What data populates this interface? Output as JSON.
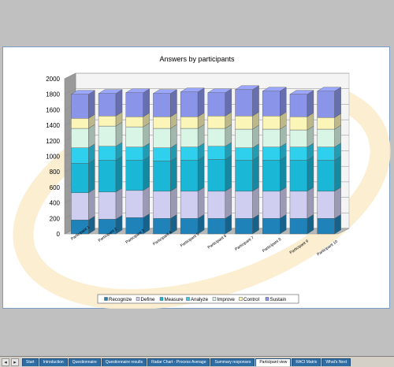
{
  "sheet_tabs": [
    "Start",
    "Introduction",
    "Questionnaire",
    "Questionnaire results",
    "Radar Chart - Process Average",
    "Summary responses",
    "Participant view",
    "RACI Matrix",
    "What's Next"
  ],
  "active_tab": 6,
  "chart_data": {
    "type": "bar",
    "stacked": true,
    "three_d": true,
    "title": "Answers by participants",
    "categories": [
      "Participant 1",
      "Participant 2",
      "Participant 3",
      "Participant 4",
      "Participant 5",
      "Participant 6",
      "Participant 7",
      "Participant 8",
      "Participant 9",
      "Participant 10"
    ],
    "ylim": [
      0,
      2000
    ],
    "yticks": [
      0,
      200,
      400,
      600,
      800,
      1000,
      1200,
      1400,
      1600,
      1800,
      2000
    ],
    "grid": true,
    "legend": "bottom",
    "series": [
      {
        "name": "Recognize",
        "color": "#1f82b8",
        "values": [
          180,
          190,
          210,
          200,
          200,
          200,
          200,
          200,
          200,
          200
        ]
      },
      {
        "name": "Define",
        "color": "#cfcdf0",
        "values": [
          350,
          350,
          350,
          350,
          350,
          350,
          350,
          350,
          350,
          350
        ]
      },
      {
        "name": "Measure",
        "color": "#1ab7d6",
        "values": [
          380,
          410,
          390,
          390,
          400,
          410,
          400,
          400,
          400,
          400
        ]
      },
      {
        "name": "Analyze",
        "color": "#2ed0ee",
        "values": [
          200,
          180,
          170,
          170,
          170,
          170,
          160,
          170,
          170,
          170
        ]
      },
      {
        "name": "Improve",
        "color": "#d8f5e6",
        "values": [
          250,
          260,
          260,
          250,
          240,
          230,
          240,
          230,
          220,
          230
        ]
      },
      {
        "name": "Control",
        "color": "#fbf5b8",
        "values": [
          130,
          130,
          130,
          150,
          150,
          160,
          170,
          170,
          170,
          150
        ]
      },
      {
        "name": "Sustain",
        "color": "#8a94e8",
        "values": [
          310,
          290,
          310,
          300,
          320,
          300,
          340,
          320,
          290,
          340
        ]
      }
    ]
  }
}
